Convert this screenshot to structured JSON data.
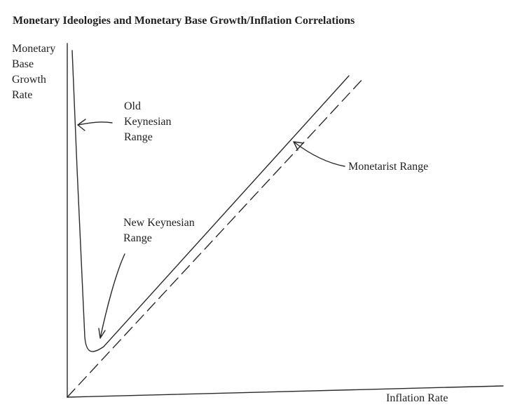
{
  "title": "Monetary Ideologies and Monetary Base Growth/Inflation Correlations",
  "y_axis_label": [
    "Monetary",
    "Base",
    "Growth",
    "Rate"
  ],
  "x_axis_label": "Inflation Rate",
  "annotations": {
    "old_keynesian": [
      "Old",
      "Keynesian",
      "Range"
    ],
    "new_keynesian": [
      "New Keynesian",
      "Range"
    ],
    "monetarist": [
      "Monetarist Range"
    ]
  }
}
